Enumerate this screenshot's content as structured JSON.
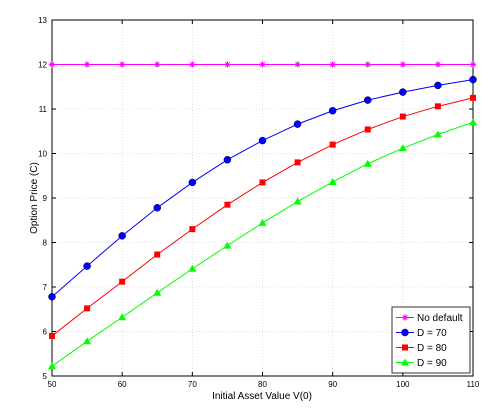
{
  "chart_data": {
    "type": "line",
    "title": "",
    "xlabel": "Initial Asset Value V(0)",
    "ylabel": "Option Price (C)",
    "xlim": [
      50,
      110
    ],
    "ylim": [
      5,
      13
    ],
    "xticks": [
      50,
      60,
      70,
      80,
      90,
      100,
      110
    ],
    "yticks": [
      5,
      6,
      7,
      8,
      9,
      10,
      11,
      12,
      13
    ],
    "grid": true,
    "legend_position": "bottom-right",
    "x": [
      50,
      55,
      60,
      65,
      70,
      75,
      80,
      85,
      90,
      95,
      100,
      105,
      110
    ],
    "series": [
      {
        "name": "No default",
        "color": "#ff00ff",
        "marker": "star",
        "values": [
          12,
          12,
          12,
          12,
          12,
          12,
          12,
          12,
          12,
          12,
          12,
          12,
          12
        ]
      },
      {
        "name": "D = 70",
        "color": "#0000ff",
        "marker": "circle",
        "values": [
          6.78,
          7.47,
          8.15,
          8.78,
          9.35,
          9.86,
          10.29,
          10.66,
          10.96,
          11.2,
          11.38,
          11.53,
          11.66
        ]
      },
      {
        "name": "D = 80",
        "color": "#ff0000",
        "marker": "square",
        "values": [
          5.9,
          6.52,
          7.12,
          7.73,
          8.3,
          8.85,
          9.35,
          9.8,
          10.2,
          10.54,
          10.83,
          11.06,
          11.25
        ]
      },
      {
        "name": "D = 90",
        "color": "#00ff00",
        "marker": "triangle",
        "values": [
          5.22,
          5.78,
          6.32,
          6.87,
          7.41,
          7.93,
          8.44,
          8.92,
          9.36,
          9.77,
          10.12,
          10.43,
          10.7
        ]
      }
    ]
  }
}
